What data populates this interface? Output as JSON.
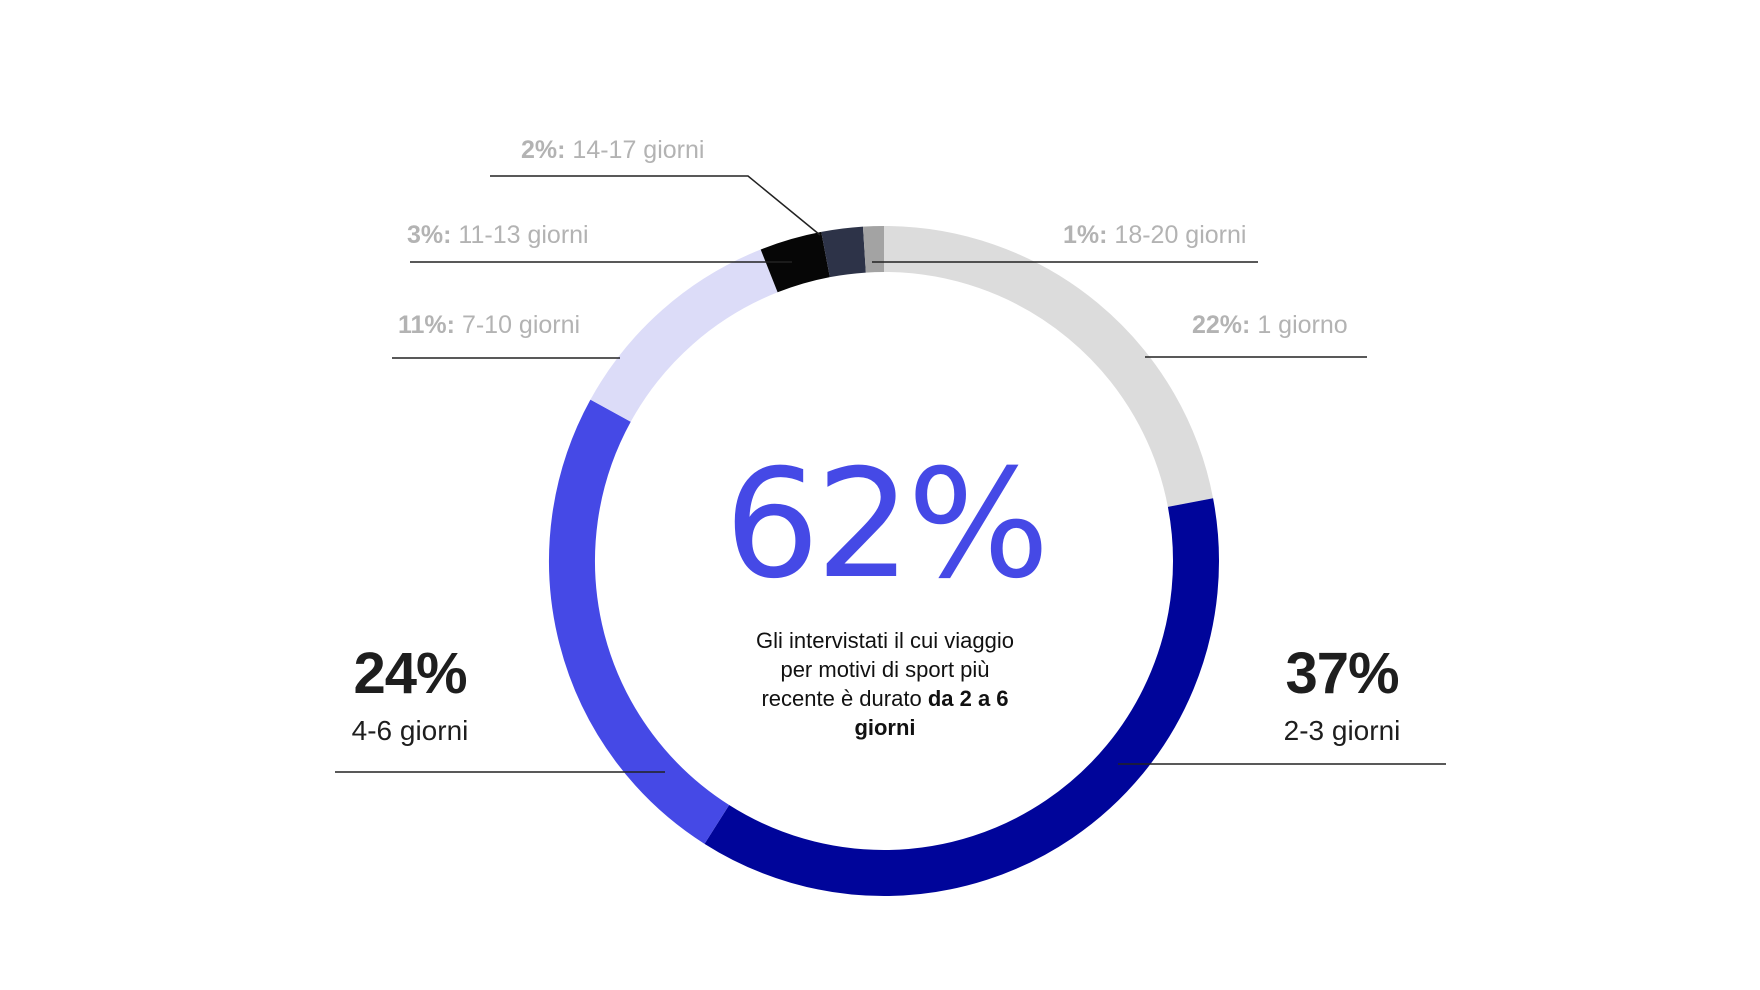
{
  "chart_data": {
    "type": "pie",
    "donut": true,
    "slices": [
      {
        "percent": "22%",
        "label": "1 giorno",
        "value": 22,
        "color": "#dcdcdc"
      },
      {
        "percent": "37%",
        "label": "2-3 giorni",
        "value": 37,
        "color": "#00059a"
      },
      {
        "percent": "24%",
        "label": "4-6 giorni",
        "value": 24,
        "color": "#4549e6"
      },
      {
        "percent": "11%:",
        "label": "7-10  giorni",
        "value": 11,
        "color": "#dcdcf8"
      },
      {
        "percent": "3%:",
        "label": "11-13 giorni",
        "value": 3,
        "color": "#060606"
      },
      {
        "percent": "2%:",
        "label": "14-17 giorni",
        "value": 2,
        "color": "#2d3348"
      },
      {
        "percent": "1%:",
        "label": "18-20  giorni",
        "value": 1,
        "color": "#a3a3a3"
      }
    ]
  },
  "labels": {
    "one_day": {
      "pct": "22%:",
      "text": "1 giorno"
    },
    "two_three": {
      "pct": "37%",
      "text": "2-3 giorni"
    },
    "four_six": {
      "pct": "24%",
      "text": "4-6 giorni"
    },
    "seven_ten": {
      "pct": "11%:",
      "text": "7-10  giorni"
    },
    "eleven_thirteen": {
      "pct": "3%:",
      "text": "11-13 giorni"
    },
    "fourteen_seventeen": {
      "pct": "2%:",
      "text": "14-17 giorni"
    },
    "eighteen_twenty": {
      "pct": "1%:",
      "text": "18-20  giorni"
    }
  },
  "center": {
    "value": "62%",
    "caption_text": "Gli intervistati il cui viaggio per motivi di sport più recente è durato",
    "caption_bold": "da 2 a 6 giorni"
  }
}
